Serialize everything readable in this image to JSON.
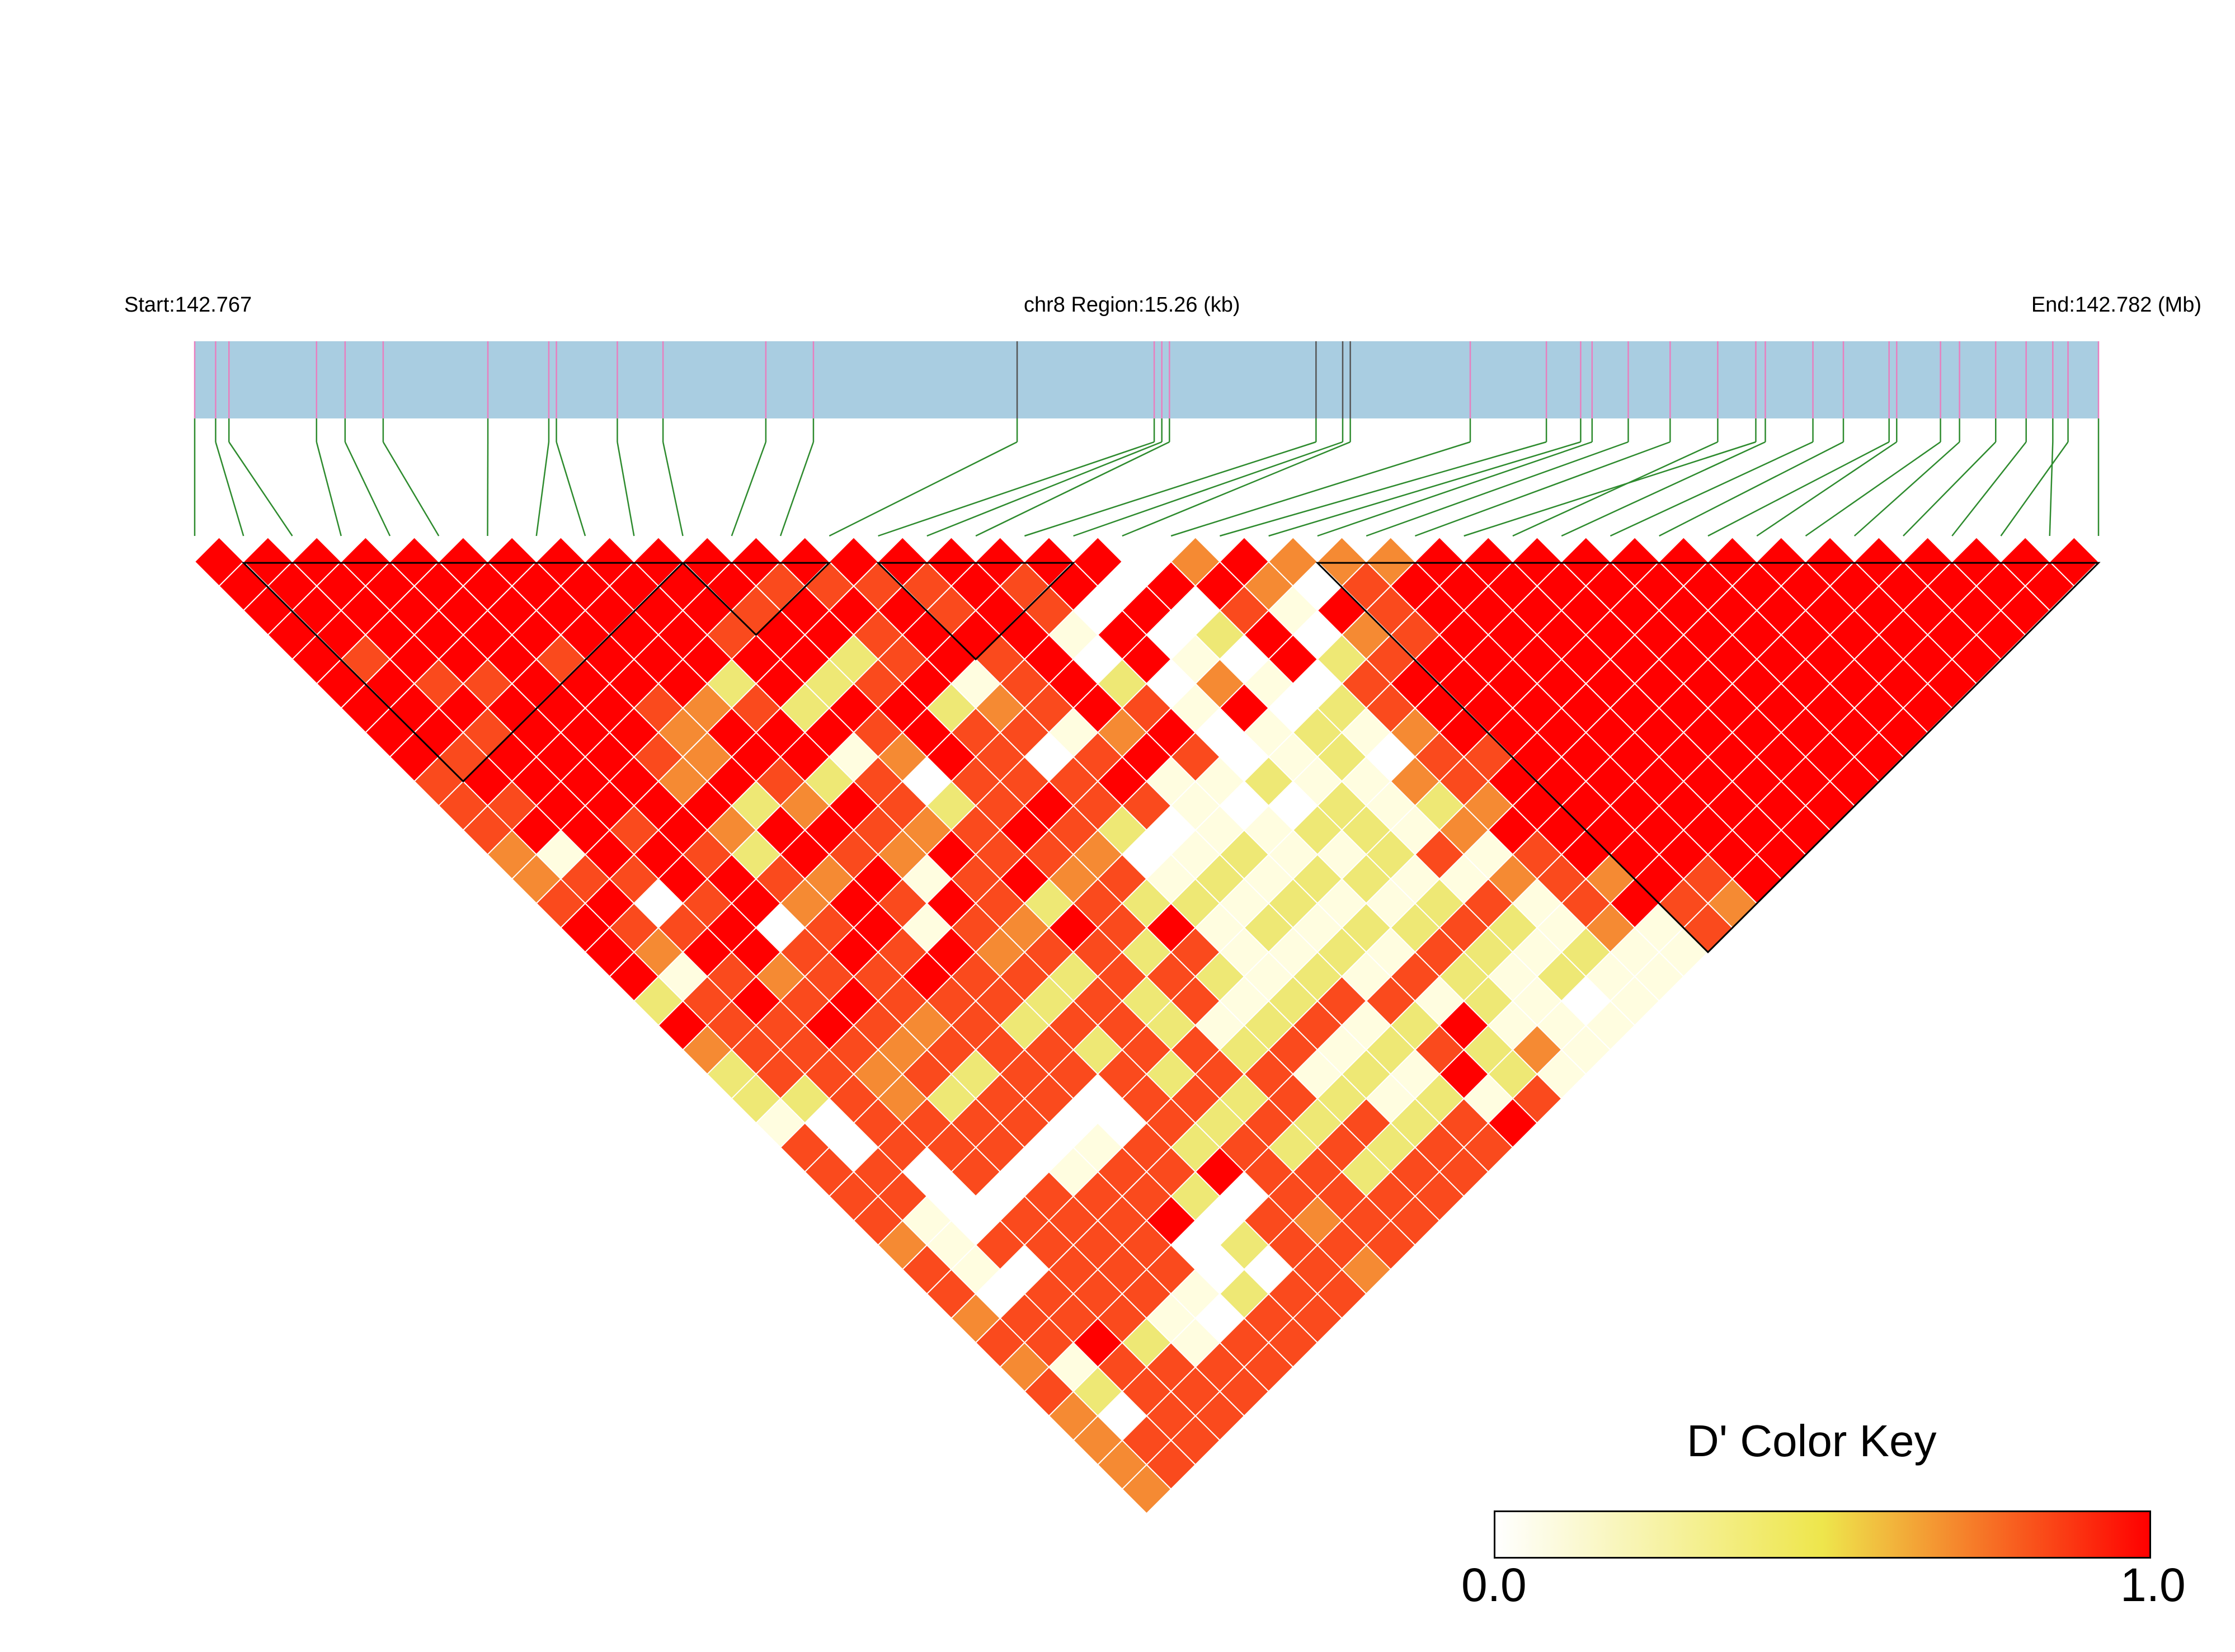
{
  "header": {
    "start_label": "Start:142.767",
    "region_label": "chr8 Region:15.26 (kb)",
    "end_label": "End:142.782 (Mb)"
  },
  "color_key": {
    "title": "D' Color Key",
    "min_label": "0.0",
    "max_label": "1.0",
    "gradient_stops": [
      "#ffffff",
      "#eee64c",
      "#ff0000"
    ]
  },
  "colors": {
    "track_fill": "#a9cde1",
    "snp_tick": "#e87fbf",
    "snp_tick_dark": "#555555",
    "connector": "#2e8b2e",
    "block_outline": "#000000",
    "cell_grid": "#ffffff"
  },
  "chart_data": {
    "type": "heatmap",
    "region": {
      "chromosome": "chr8",
      "start_mb": 142.767,
      "end_mb": 142.782,
      "length_kb": 15.26
    },
    "n_snps": 40,
    "snp_positions_frac": [
      0.0,
      0.011,
      0.018,
      0.064,
      0.079,
      0.099,
      0.154,
      0.186,
      0.19,
      0.222,
      0.246,
      0.3,
      0.325,
      0.432,
      0.504,
      0.508,
      0.512,
      0.589,
      0.603,
      0.607,
      0.67,
      0.71,
      0.728,
      0.734,
      0.753,
      0.775,
      0.82,
      0.8,
      0.825,
      0.85,
      0.866,
      0.89,
      0.894,
      0.917,
      0.927,
      0.946,
      0.962,
      0.984,
      0.976,
      1.0
    ],
    "dark_snp_indices": [
      13,
      17,
      18,
      19
    ],
    "ld_blocks": [
      [
        1,
        10
      ],
      [
        10,
        13
      ],
      [
        14,
        18
      ],
      [
        23,
        39
      ]
    ],
    "dprime_thresholds": [
      1.0,
      0.9,
      0.7,
      0.45,
      0.15
    ],
    "dprime_class_values": [
      1.0,
      0.9,
      0.75,
      0.55,
      0.3,
      0.05
    ],
    "dprime_rows": [
      [
        1.0,
        1.0,
        1.0,
        1.0,
        1.0,
        1.0,
        1.0,
        1.0,
        1.0,
        1.0,
        1.0,
        1.0,
        1.0,
        1.0,
        1.0,
        1.0,
        1.0,
        1.0,
        1.0,
        0.05,
        0.75,
        1.0,
        0.75,
        0.75,
        0.75,
        1.0,
        1.0,
        1.0,
        1.0,
        1.0,
        1.0,
        1.0,
        1.0,
        1.0,
        1.0,
        1.0,
        1.0,
        1.0,
        1.0
      ],
      [
        1.0,
        1.0,
        1.0,
        1.0,
        1.0,
        1.0,
        1.0,
        1.0,
        1.0,
        1.0,
        1.0,
        0.9,
        0.9,
        0.9,
        0.9,
        1.0,
        0.9,
        1.0,
        0.05,
        1.0,
        1.0,
        0.75,
        0.05,
        0.9,
        1.0,
        1.0,
        1.0,
        1.0,
        1.0,
        1.0,
        1.0,
        1.0,
        1.0,
        1.0,
        1.0,
        1.0,
        1.0,
        1.0
      ],
      [
        1.0,
        1.0,
        1.0,
        1.0,
        1.0,
        1.0,
        1.0,
        1.0,
        1.0,
        1.0,
        0.9,
        1.0,
        1.0,
        1.0,
        0.9,
        1.0,
        0.9,
        0.05,
        1.0,
        0.05,
        0.9,
        0.3,
        1.0,
        0.9,
        1.0,
        1.0,
        1.0,
        1.0,
        1.0,
        1.0,
        1.0,
        1.0,
        1.0,
        1.0,
        1.0,
        1.0,
        1.0
      ],
      [
        1.0,
        1.0,
        1.0,
        1.0,
        1.0,
        1.0,
        1.0,
        1.0,
        1.0,
        0.9,
        1.0,
        1.0,
        0.9,
        1.0,
        1.0,
        1.0,
        0.3,
        1.0,
        0.05,
        0.55,
        1.0,
        0.05,
        0.75,
        0.9,
        1.0,
        1.0,
        1.0,
        1.0,
        1.0,
        1.0,
        1.0,
        1.0,
        1.0,
        1.0,
        1.0,
        1.0
      ],
      [
        1.0,
        0.9,
        1.0,
        1.0,
        1.0,
        0.9,
        1.0,
        1.0,
        1.0,
        1.0,
        1.0,
        0.55,
        0.9,
        1.0,
        0.9,
        1.0,
        0.05,
        1.0,
        0.3,
        0.05,
        1.0,
        0.55,
        0.9,
        1.0,
        1.0,
        1.0,
        1.0,
        1.0,
        1.0,
        1.0,
        1.0,
        1.0,
        1.0,
        1.0,
        1.0
      ],
      [
        1.0,
        1.0,
        0.9,
        0.9,
        1.0,
        1.0,
        1.0,
        1.0,
        0.55,
        1.0,
        0.55,
        0.9,
        1.0,
        0.3,
        0.9,
        1.0,
        0.55,
        0.05,
        0.75,
        0.3,
        0.05,
        0.9,
        1.0,
        1.0,
        1.0,
        1.0,
        1.0,
        1.0,
        1.0,
        1.0,
        1.0,
        1.0,
        1.0,
        1.0
      ],
      [
        1.0,
        1.0,
        1.0,
        1.0,
        1.0,
        1.0,
        0.9,
        0.75,
        0.9,
        0.55,
        1.0,
        1.0,
        0.55,
        0.75,
        0.9,
        1.0,
        0.9,
        0.3,
        1.0,
        0.05,
        0.55,
        0.9,
        1.0,
        1.0,
        1.0,
        1.0,
        1.0,
        1.0,
        1.0,
        1.0,
        1.0,
        1.0,
        1.0
      ],
      [
        1.0,
        1.0,
        0.9,
        1.0,
        1.0,
        1.0,
        0.75,
        1.0,
        1.0,
        1.0,
        0.9,
        1.0,
        0.9,
        0.9,
        0.3,
        0.75,
        1.0,
        0.05,
        0.3,
        0.55,
        0.3,
        0.75,
        1.0,
        1.0,
        1.0,
        1.0,
        1.0,
        1.0,
        1.0,
        1.0,
        1.0,
        1.0
      ],
      [
        1.0,
        0.9,
        1.0,
        1.0,
        1.0,
        0.9,
        0.75,
        1.0,
        1.0,
        0.3,
        0.75,
        1.0,
        0.9,
        0.05,
        0.9,
        1.0,
        0.9,
        0.05,
        0.3,
        0.55,
        0.05,
        0.9,
        0.9,
        1.0,
        1.0,
        1.0,
        1.0,
        1.0,
        1.0,
        1.0,
        1.0
      ],
      [
        0.9,
        1.0,
        1.0,
        1.0,
        1.0,
        0.75,
        1.0,
        0.9,
        0.55,
        0.9,
        0.05,
        0.9,
        0.9,
        0.9,
        1.0,
        0.3,
        0.3,
        0.55,
        0.3,
        0.3,
        0.75,
        0.9,
        1.0,
        1.0,
        1.0,
        1.0,
        1.0,
        1.0,
        1.0,
        1.0
      ],
      [
        0.9,
        0.9,
        1.0,
        1.0,
        1.0,
        1.0,
        0.55,
        0.75,
        1.0,
        0.9,
        0.55,
        0.9,
        1.0,
        0.9,
        0.9,
        0.3,
        0.05,
        0.05,
        0.55,
        0.3,
        0.55,
        0.75,
        1.0,
        1.0,
        1.0,
        1.0,
        1.0,
        1.0,
        1.0
      ],
      [
        0.9,
        1.0,
        1.0,
        0.9,
        1.0,
        0.75,
        1.0,
        1.0,
        0.9,
        0.75,
        0.9,
        1.0,
        0.9,
        0.55,
        0.05,
        0.3,
        0.3,
        0.55,
        0.55,
        0.3,
        0.75,
        1.0,
        1.0,
        1.0,
        1.0,
        1.0,
        1.0,
        1.0
      ],
      [
        0.75,
        0.3,
        1.0,
        1.0,
        0.9,
        0.55,
        1.0,
        0.9,
        0.75,
        1.0,
        0.9,
        0.9,
        0.75,
        0.05,
        0.3,
        0.55,
        0.3,
        0.3,
        0.55,
        0.9,
        0.3,
        0.9,
        1.0,
        1.0,
        1.0,
        1.0,
        1.0
      ],
      [
        0.75,
        0.9,
        0.9,
        1.0,
        1.0,
        0.9,
        0.75,
        1.0,
        0.3,
        0.9,
        1.0,
        0.75,
        0.9,
        0.3,
        0.55,
        0.3,
        0.55,
        0.55,
        0.3,
        0.3,
        0.75,
        0.9,
        0.75,
        1.0,
        0.9,
        1.0
      ],
      [
        0.9,
        1.0,
        0.05,
        0.9,
        1.0,
        0.75,
        1.0,
        0.9,
        1.0,
        0.9,
        0.55,
        0.9,
        0.55,
        0.55,
        0.3,
        0.55,
        0.3,
        0.3,
        0.55,
        0.9,
        0.3,
        0.9,
        1.0,
        0.9,
        0.75
      ],
      [
        1.0,
        0.9,
        0.9,
        1.0,
        0.05,
        0.9,
        1.0,
        0.3,
        0.9,
        0.75,
        1.0,
        0.9,
        1.0,
        0.3,
        0.55,
        0.3,
        0.55,
        0.55,
        0.9,
        0.55,
        0.3,
        0.75,
        0.3,
        0.9
      ],
      [
        1.0,
        0.75,
        1.0,
        1.0,
        0.9,
        1.0,
        0.9,
        1.0,
        0.75,
        0.9,
        0.9,
        0.55,
        0.9,
        0.3,
        0.3,
        0.55,
        0.3,
        0.9,
        0.55,
        0.3,
        0.55,
        0.3,
        0.3
      ],
      [
        1.0,
        0.3,
        0.9,
        0.75,
        0.9,
        0.9,
        1.0,
        0.9,
        0.9,
        0.55,
        0.9,
        0.9,
        0.55,
        0.3,
        0.55,
        0.3,
        0.9,
        0.55,
        0.3,
        0.55,
        0.3,
        0.3
      ],
      [
        0.55,
        0.9,
        1.0,
        0.9,
        1.0,
        0.9,
        0.9,
        0.9,
        0.55,
        0.9,
        0.55,
        0.9,
        0.3,
        0.55,
        0.9,
        0.9,
        0.3,
        0.55,
        0.3,
        0.05,
        0.3
      ],
      [
        1.0,
        0.9,
        0.9,
        1.0,
        0.9,
        0.75,
        0.9,
        0.55,
        0.9,
        0.9,
        0.55,
        0.3,
        0.55,
        0.9,
        0.3,
        0.55,
        1.0,
        0.3,
        0.3,
        0.3
      ],
      [
        0.75,
        0.9,
        0.9,
        0.9,
        0.75,
        0.9,
        0.9,
        0.9,
        0.55,
        0.9,
        0.9,
        0.55,
        0.9,
        0.3,
        0.55,
        0.9,
        0.55,
        0.75,
        0.3
      ],
      [
        0.55,
        0.9,
        0.9,
        0.75,
        0.9,
        0.55,
        0.9,
        0.9,
        0.9,
        0.55,
        0.9,
        0.9,
        0.3,
        0.55,
        0.3,
        1.0,
        0.55,
        0.3
      ],
      [
        0.55,
        0.55,
        0.9,
        0.75,
        0.55,
        0.9,
        0.9,
        0.05,
        0.9,
        0.9,
        0.55,
        0.9,
        0.55,
        0.3,
        0.55,
        0.3,
        0.9
      ],
      [
        0.3,
        0.05,
        0.9,
        0.9,
        0.9,
        0.9,
        0.05,
        0.05,
        0.9,
        0.55,
        0.9,
        0.55,
        0.9,
        0.55,
        0.9,
        1.0
      ],
      [
        0.9,
        0.05,
        0.9,
        0.9,
        0.9,
        0.05,
        0.3,
        0.9,
        0.55,
        0.9,
        0.55,
        0.9,
        0.55,
        0.9,
        0.9
      ],
      [
        0.9,
        0.9,
        0.05,
        0.9,
        0.05,
        0.3,
        0.9,
        0.9,
        1.0,
        0.9,
        0.9,
        0.55,
        0.9,
        0.9
      ],
      [
        0.9,
        0.9,
        0.05,
        0.05,
        0.9,
        0.9,
        0.9,
        0.55,
        0.05,
        0.9,
        0.9,
        0.9,
        0.9
      ],
      [
        0.9,
        0.3,
        0.05,
        0.9,
        0.9,
        0.9,
        1.0,
        0.05,
        0.9,
        0.75,
        0.9,
        0.9
      ],
      [
        0.75,
        0.3,
        0.9,
        0.9,
        0.9,
        0.9,
        0.05,
        0.55,
        0.9,
        0.9,
        0.9
      ],
      [
        0.9,
        0.3,
        0.05,
        0.9,
        0.9,
        0.9,
        0.05,
        0.05,
        0.9,
        0.75
      ],
      [
        0.9,
        0.05,
        0.9,
        0.9,
        0.9,
        0.3,
        0.55,
        0.9,
        0.9
      ],
      [
        0.75,
        0.9,
        0.9,
        0.9,
        0.3,
        0.05,
        0.9,
        0.9
      ],
      [
        0.9,
        0.9,
        1.0,
        0.55,
        0.3,
        0.9,
        0.9
      ],
      [
        0.75,
        0.3,
        0.9,
        0.9,
        0.9,
        0.9
      ],
      [
        0.9,
        0.55,
        0.9,
        0.9,
        0.9
      ],
      [
        0.75,
        0.05,
        0.9,
        0.9
      ],
      [
        0.75,
        0.9,
        0.9
      ],
      [
        0.75,
        0.9
      ],
      [
        0.75
      ]
    ]
  }
}
